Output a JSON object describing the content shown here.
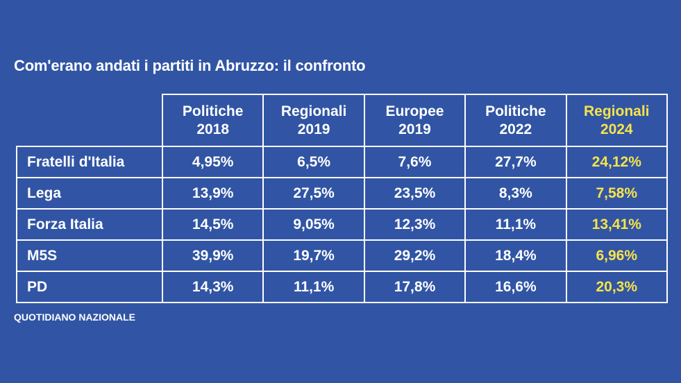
{
  "title": "Com'erano andati i partiti in Abruzzo: il confronto",
  "source": "QUOTIDIANO NAZIONALE",
  "colors": {
    "background": "#3155a4",
    "text": "#ffffff",
    "highlight": "#f7e44a",
    "border": "#ffffff"
  },
  "chart_data": {
    "type": "table",
    "title": "Com'erano andati i partiti in Abruzzo: il confronto",
    "columns": [
      {
        "line1": "Politiche",
        "line2": "2018",
        "highlight": false
      },
      {
        "line1": "Regionali",
        "line2": "2019",
        "highlight": false
      },
      {
        "line1": "Europee",
        "line2": "2019",
        "highlight": false
      },
      {
        "line1": "Politiche",
        "line2": "2022",
        "highlight": false
      },
      {
        "line1": "Regionali",
        "line2": "2024",
        "highlight": true
      }
    ],
    "rows": [
      {
        "party": "Fratelli d'Italia",
        "values": [
          "4,95%",
          "6,5%",
          "7,6%",
          "27,7%",
          "24,12%"
        ]
      },
      {
        "party": "Lega",
        "values": [
          "13,9%",
          "27,5%",
          "23,5%",
          "8,3%",
          "7,58%"
        ]
      },
      {
        "party": "Forza Italia",
        "values": [
          "14,5%",
          "9,05%",
          "12,3%",
          "11,1%",
          "13,41%"
        ]
      },
      {
        "party": "M5S",
        "values": [
          "39,9%",
          "19,7%",
          "29,2%",
          "18,4%",
          "6,96%"
        ]
      },
      {
        "party": "PD",
        "values": [
          "14,3%",
          "11,1%",
          "17,8%",
          "16,6%",
          "20,3%"
        ]
      }
    ]
  }
}
